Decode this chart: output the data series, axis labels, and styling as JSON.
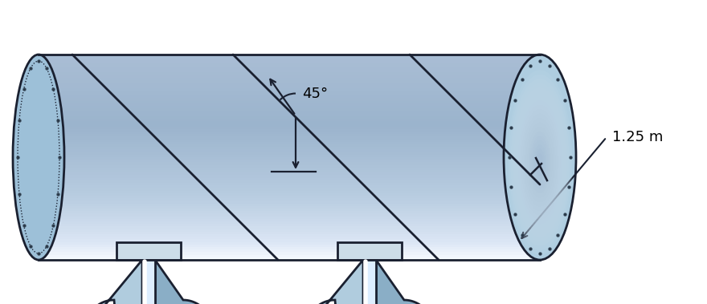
{
  "bg_color": "#ffffff",
  "outline_color": "#1a2030",
  "bolt_color": "#2a3a4a",
  "cyl_light": "#daeaf5",
  "cyl_mid": "#b8d4e8",
  "cyl_dark": "#7aacc8",
  "cyl_highlight": "#eef5fa",
  "end_cap_color": "#a8c8dc",
  "support_face": "#b0ccde",
  "support_side": "#8aaec6",
  "support_top": "#ccdde8",
  "shadow_color": "#d0d0d0",
  "angle_label": "45°",
  "radius_label": "1.25 m",
  "fig_width": 8.8,
  "fig_height": 3.79
}
